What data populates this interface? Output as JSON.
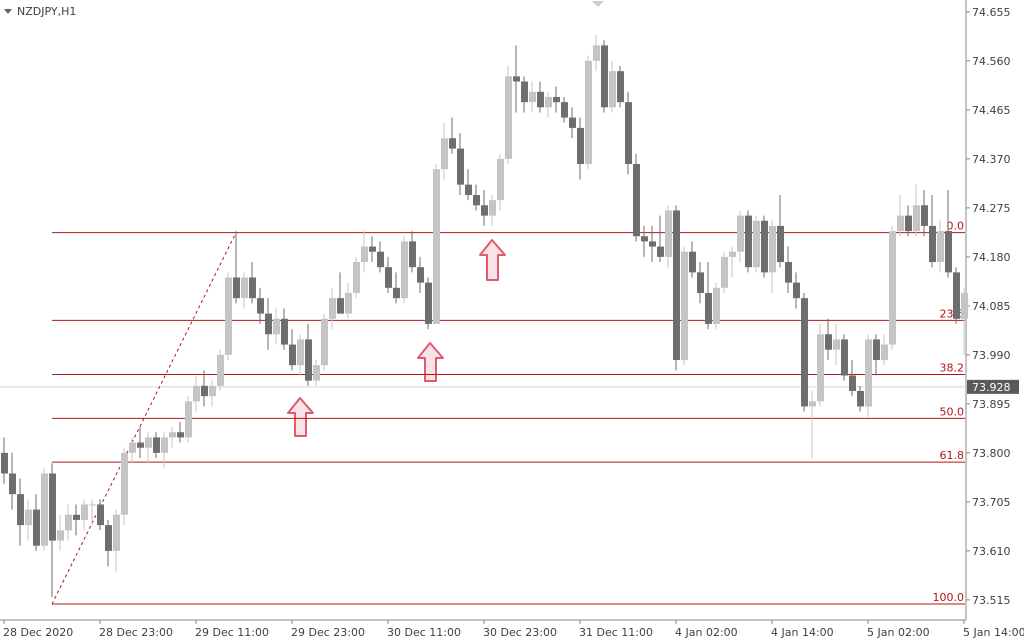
{
  "chart_data": {
    "type": "candlestick",
    "title": "NZDJPY,H1",
    "categories": [
      "28 Dec 2020",
      null,
      null,
      null,
      null,
      null,
      null,
      null,
      null,
      null,
      null,
      null,
      "28 Dec 23:00",
      null,
      null,
      null,
      null,
      null,
      null,
      null,
      null,
      null,
      null,
      null,
      "29 Dec 11:00",
      null,
      null,
      null,
      null,
      null,
      null,
      null,
      null,
      null,
      null,
      null,
      "29 Dec 23:00",
      null,
      null,
      null,
      null,
      null,
      null,
      null,
      null,
      null,
      null,
      null,
      "30 Dec 11:00",
      null,
      null,
      null,
      null,
      null,
      null,
      null,
      null,
      null,
      null,
      null,
      "30 Dec 23:00",
      null,
      null,
      null,
      null,
      null,
      null,
      null,
      null,
      null,
      null,
      null,
      "31 Dec 11:00",
      null,
      null,
      null,
      null,
      null,
      null,
      null,
      null,
      null,
      null,
      null,
      "4 Jan 02:00",
      null,
      null,
      null,
      null,
      null,
      null,
      null,
      null,
      null,
      null,
      null,
      "4 Jan 14:00",
      null,
      null,
      null,
      null,
      null,
      null,
      null,
      null,
      null,
      null,
      null,
      "5 Jan 02:00",
      null,
      null,
      null,
      null,
      null,
      null,
      null,
      null,
      null,
      null,
      null,
      "5 Jan 14:00"
    ],
    "open": [
      73.8,
      73.76,
      73.72,
      73.66,
      73.69,
      73.62,
      73.76,
      73.63,
      73.65,
      73.68,
      73.67,
      73.7,
      73.7,
      73.66,
      73.61,
      73.68,
      73.8,
      73.82,
      73.81,
      73.83,
      73.8,
      73.83,
      73.84,
      73.83,
      73.9,
      73.93,
      73.91,
      73.93,
      73.99,
      74.14,
      74.1,
      74.14,
      74.1,
      74.07,
      74.03,
      74.06,
      74.01,
      73.97,
      74.02,
      73.94,
      73.97,
      74.06,
      74.1,
      74.07,
      74.11,
      74.17,
      74.2,
      74.19,
      74.16,
      74.12,
      74.1,
      74.21,
      74.16,
      74.13,
      74.05,
      74.35,
      74.41,
      74.39,
      74.32,
      74.3,
      74.28,
      74.26,
      74.29,
      74.37,
      74.53,
      74.52,
      74.48,
      74.5,
      74.47,
      74.49,
      74.48,
      74.45,
      74.43,
      74.36,
      74.56,
      74.59,
      74.47,
      74.54,
      74.48,
      74.36,
      74.22,
      74.21,
      74.2,
      74.18,
      74.27,
      73.98,
      74.19,
      74.15,
      74.11,
      74.05,
      74.12,
      74.18,
      74.19,
      74.26,
      74.16,
      74.25,
      74.15,
      74.24,
      74.17,
      74.13,
      74.1,
      73.89,
      73.9,
      74.03,
      74.0,
      74.02,
      73.95,
      73.92,
      73.89,
      74.02,
      73.98,
      74.01,
      74.23,
      74.26,
      74.23,
      74.28,
      74.24,
      74.17,
      74.23,
      74.15,
      74.06
    ],
    "high": [
      73.83,
      73.8,
      73.75,
      73.71,
      73.72,
      73.77,
      73.78,
      73.68,
      73.7,
      73.7,
      73.71,
      73.71,
      73.71,
      73.67,
      73.69,
      73.81,
      73.83,
      73.85,
      73.84,
      73.84,
      73.84,
      73.85,
      73.86,
      73.91,
      73.95,
      73.96,
      73.94,
      74.0,
      74.15,
      74.23,
      74.15,
      74.17,
      74.12,
      74.1,
      74.08,
      74.08,
      74.04,
      74.03,
      74.05,
      73.98,
      74.07,
      74.12,
      74.15,
      74.13,
      74.18,
      74.23,
      74.22,
      74.21,
      74.18,
      74.15,
      74.22,
      74.23,
      74.18,
      74.14,
      74.36,
      74.44,
      74.45,
      74.42,
      74.35,
      74.32,
      74.31,
      74.3,
      74.38,
      74.55,
      74.59,
      74.53,
      74.52,
      74.52,
      74.5,
      74.51,
      74.49,
      74.47,
      74.45,
      74.57,
      74.61,
      74.6,
      74.56,
      74.55,
      74.5,
      74.38,
      74.24,
      74.24,
      74.26,
      74.28,
      74.28,
      74.2,
      74.21,
      74.17,
      74.17,
      74.13,
      74.19,
      74.2,
      74.27,
      74.27,
      74.26,
      74.26,
      74.25,
      74.3,
      74.2,
      74.15,
      74.11,
      73.92,
      74.05,
      74.06,
      74.05,
      74.03,
      73.98,
      73.93,
      74.03,
      74.03,
      74.03,
      74.24,
      74.3,
      74.28,
      74.32,
      74.31,
      74.3,
      74.25,
      74.31,
      74.16,
      74.12
    ],
    "low": [
      73.74,
      73.69,
      73.62,
      73.63,
      73.61,
      73.61,
      73.52,
      73.61,
      73.63,
      73.64,
      73.65,
      73.66,
      73.65,
      73.58,
      73.57,
      73.66,
      73.78,
      73.79,
      73.78,
      73.79,
      73.77,
      73.81,
      73.82,
      73.82,
      73.88,
      73.89,
      73.89,
      73.92,
      73.98,
      74.09,
      74.08,
      74.09,
      74.05,
      74.0,
      74.01,
      74.0,
      73.96,
      73.95,
      73.93,
      73.93,
      73.96,
      74.04,
      74.07,
      74.06,
      74.1,
      74.15,
      74.17,
      74.15,
      74.11,
      74.09,
      74.09,
      74.15,
      74.11,
      74.04,
      74.05,
      74.33,
      74.38,
      74.3,
      74.29,
      74.27,
      74.24,
      74.24,
      74.27,
      74.36,
      74.46,
      74.46,
      74.46,
      74.46,
      74.45,
      74.46,
      74.44,
      74.41,
      74.33,
      74.35,
      74.54,
      74.46,
      74.46,
      74.47,
      74.34,
      74.21,
      74.18,
      74.17,
      74.17,
      74.16,
      73.96,
      73.97,
      74.14,
      74.09,
      74.04,
      74.04,
      74.11,
      74.14,
      74.17,
      74.15,
      74.15,
      74.14,
      74.11,
      74.16,
      74.11,
      74.08,
      73.88,
      73.79,
      73.89,
      73.98,
      73.97,
      73.94,
      73.91,
      73.88,
      73.87,
      73.95,
      73.97,
      74.0,
      74.22,
      74.22,
      74.22,
      74.22,
      74.16,
      74.15,
      74.14,
      74.05,
      73.99
    ],
    "close": [
      73.76,
      73.72,
      73.66,
      73.69,
      73.62,
      73.76,
      73.63,
      73.65,
      73.68,
      73.67,
      73.7,
      73.7,
      73.66,
      73.61,
      73.68,
      73.8,
      73.82,
      73.81,
      73.83,
      73.8,
      73.83,
      73.84,
      73.83,
      73.9,
      73.93,
      73.91,
      73.93,
      73.99,
      74.14,
      74.1,
      74.14,
      74.1,
      74.07,
      74.03,
      74.06,
      74.01,
      73.97,
      74.02,
      73.94,
      73.97,
      74.06,
      74.1,
      74.07,
      74.11,
      74.17,
      74.2,
      74.19,
      74.16,
      74.12,
      74.1,
      74.21,
      74.16,
      74.13,
      74.05,
      74.35,
      74.41,
      74.39,
      74.32,
      74.3,
      74.28,
      74.26,
      74.29,
      74.37,
      74.53,
      74.52,
      74.48,
      74.5,
      74.47,
      74.49,
      74.48,
      74.45,
      74.43,
      74.36,
      74.56,
      74.59,
      74.47,
      74.54,
      74.48,
      74.36,
      74.22,
      74.21,
      74.2,
      74.18,
      74.27,
      73.98,
      74.19,
      74.15,
      74.11,
      74.05,
      74.12,
      74.18,
      74.19,
      74.26,
      74.16,
      74.25,
      74.15,
      74.24,
      74.17,
      74.13,
      74.1,
      73.89,
      73.9,
      74.03,
      74.0,
      74.02,
      73.95,
      73.92,
      73.89,
      74.02,
      73.98,
      74.01,
      74.23,
      74.26,
      74.23,
      74.28,
      74.24,
      74.17,
      74.23,
      74.15,
      74.06,
      74.11
    ],
    "up_color": "#c4c4c4",
    "down_color": "#6e6e6e",
    "ylim": [
      73.476,
      74.678
    ],
    "yticks": [
      {
        "value": 74.655,
        "label": "74.655"
      },
      {
        "value": 74.56,
        "label": "74.560"
      },
      {
        "value": 74.465,
        "label": "74.465"
      },
      {
        "value": 74.37,
        "label": "74.370"
      },
      {
        "value": 74.275,
        "label": "74.275"
      },
      {
        "value": 74.18,
        "label": "74.180"
      },
      {
        "value": 74.085,
        "label": "74.085"
      },
      {
        "value": 73.99,
        "label": "73.990"
      },
      {
        "value": 73.895,
        "label": "73.895"
      },
      {
        "value": 73.8,
        "label": "73.800"
      },
      {
        "value": 73.705,
        "label": "73.705"
      },
      {
        "value": 73.61,
        "label": "73.610"
      },
      {
        "value": 73.515,
        "label": "73.515"
      }
    ],
    "current_price": {
      "value": 73.928,
      "label": "73.928"
    },
    "fib_color": "#b01818",
    "fib_levels": [
      {
        "value": 74.227,
        "label": "0.0"
      },
      {
        "value": 74.057,
        "label": "23.6"
      },
      {
        "value": 73.952,
        "label": "38.2"
      },
      {
        "value": 73.867,
        "label": "50.0"
      },
      {
        "value": 73.782,
        "label": "61.8"
      },
      {
        "value": 73.507,
        "label": "100.0"
      }
    ]
  }
}
